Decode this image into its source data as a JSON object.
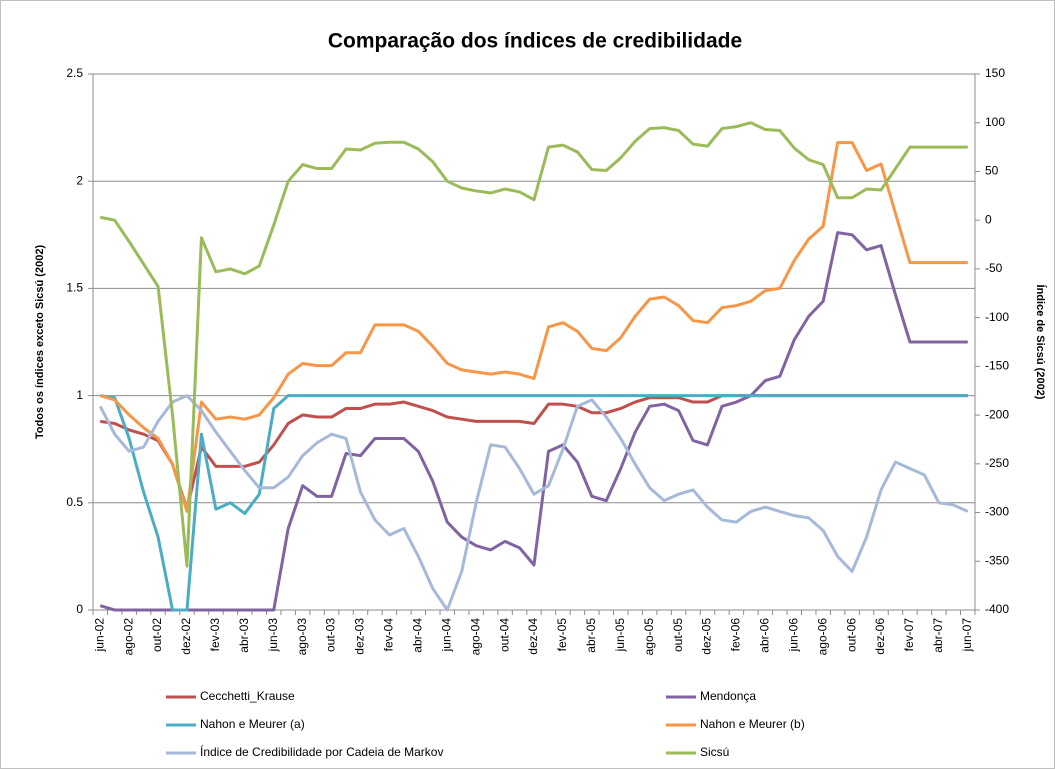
{
  "chart_data": {
    "type": "line",
    "title": "Comparação dos índices de credibilidade",
    "y_label": "Todos os índices exceto Sicsú (2002)",
    "y2_label": "Índice de Sicsú (2002)",
    "categories": [
      "jun-02",
      null,
      "ago-02",
      null,
      "out-02",
      null,
      "dez-02",
      null,
      "fev-03",
      null,
      "abr-03",
      null,
      "jun-03",
      null,
      "ago-03",
      null,
      "out-03",
      null,
      "dez-03",
      null,
      "fev-04",
      null,
      "abr-04",
      null,
      "jun-04",
      null,
      "ago-04",
      null,
      "out-04",
      null,
      "dez-04",
      null,
      "fev-05",
      null,
      "abr-05",
      null,
      "jun-05",
      null,
      "ago-05",
      null,
      "out-05",
      null,
      "dez-05",
      null,
      "fev-06",
      null,
      "abr-06",
      null,
      "jun-06",
      null,
      "ago-06",
      null,
      "out-06",
      null,
      "dez-06",
      null,
      "fev-07",
      null,
      "abr-07",
      null,
      "jun-07"
    ],
    "ylim": [
      0,
      2.5
    ],
    "yticks": [
      0,
      0.5,
      1,
      1.5,
      2,
      2.5
    ],
    "y2lim": [
      -400,
      150
    ],
    "y2ticks": [
      -400,
      -350,
      -300,
      -250,
      -200,
      -150,
      -100,
      -50,
      0,
      50,
      100,
      150
    ],
    "grid": true,
    "legend": "bottom",
    "series": [
      {
        "name": "Cecchetti_Krause",
        "color": "#c0504d",
        "values": [
          0.88,
          0.87,
          0.84,
          0.82,
          0.79,
          0.68,
          0.47,
          0.76,
          0.67,
          0.67,
          0.67,
          0.69,
          0.77,
          0.87,
          0.91,
          0.9,
          0.9,
          0.94,
          0.94,
          0.96,
          0.96,
          0.97,
          0.95,
          0.93,
          0.9,
          0.89,
          0.88,
          0.88,
          0.88,
          0.88,
          0.87,
          0.96,
          0.96,
          0.95,
          0.92,
          0.92,
          0.94,
          0.97,
          0.99,
          0.99,
          0.99,
          0.97,
          0.97,
          1,
          1,
          1,
          1,
          1,
          1,
          1,
          1,
          1,
          1,
          1,
          1,
          1,
          1,
          1,
          1,
          1,
          1
        ]
      },
      {
        "name": "Mendonça",
        "color": "#8064a2",
        "values": [
          0.02,
          0,
          0,
          0,
          0,
          0,
          0,
          0,
          0,
          0,
          0,
          0,
          0,
          0.38,
          0.58,
          0.53,
          0.53,
          0.73,
          0.72,
          0.8,
          0.8,
          0.8,
          0.74,
          0.6,
          0.41,
          0.34,
          0.3,
          0.28,
          0.32,
          0.29,
          0.21,
          0.74,
          0.77,
          0.69,
          0.53,
          0.51,
          0.66,
          0.83,
          0.95,
          0.96,
          0.93,
          0.79,
          0.77,
          0.95,
          0.97,
          1,
          1.07,
          1.09,
          1.26,
          1.37,
          1.44,
          1.76,
          1.75,
          1.68,
          1.7,
          1.47,
          1.25,
          1.25,
          1.25,
          1.25,
          1.25
        ]
      },
      {
        "name": "Nahon e Meurer (a)",
        "color": "#4bacc6",
        "values": [
          1,
          0.99,
          0.8,
          0.55,
          0.34,
          0,
          0,
          0.82,
          0.47,
          0.5,
          0.45,
          0.54,
          0.94,
          1,
          1,
          1,
          1,
          1,
          1,
          1,
          1,
          1,
          1,
          1,
          1,
          1,
          1,
          1,
          1,
          1,
          1,
          1,
          1,
          1,
          1,
          1,
          1,
          1,
          1,
          1,
          1,
          1,
          1,
          1,
          1,
          1,
          1,
          1,
          1,
          1,
          1,
          1,
          1,
          1,
          1,
          1,
          1,
          1,
          1,
          1,
          1
        ]
      },
      {
        "name": "Nahon e Meurer (b)",
        "color": "#f79646",
        "values": [
          1,
          0.98,
          0.91,
          0.85,
          0.8,
          0.68,
          0.46,
          0.97,
          0.89,
          0.9,
          0.89,
          0.91,
          0.99,
          1.1,
          1.15,
          1.14,
          1.14,
          1.2,
          1.2,
          1.33,
          1.33,
          1.33,
          1.3,
          1.23,
          1.15,
          1.12,
          1.11,
          1.1,
          1.11,
          1.1,
          1.08,
          1.32,
          1.34,
          1.3,
          1.22,
          1.21,
          1.27,
          1.37,
          1.45,
          1.46,
          1.42,
          1.35,
          1.34,
          1.41,
          1.42,
          1.44,
          1.49,
          1.5,
          1.63,
          1.73,
          1.79,
          2.18,
          2.18,
          2.05,
          2.08,
          1.85,
          1.62,
          1.62,
          1.62,
          1.62,
          1.62
        ]
      },
      {
        "name": "Índice de Credibilidade por Cadeia de Markov",
        "color": "#a6b9d9",
        "values": [
          0.95,
          0.82,
          0.74,
          0.76,
          0.88,
          0.97,
          1,
          0.93,
          0.83,
          0.74,
          0.65,
          0.57,
          0.57,
          0.62,
          0.72,
          0.78,
          0.82,
          0.8,
          0.55,
          0.42,
          0.35,
          0.38,
          0.25,
          0.1,
          0,
          0.18,
          0.5,
          0.77,
          0.76,
          0.66,
          0.54,
          0.58,
          0.75,
          0.95,
          0.98,
          0.9,
          0.8,
          0.68,
          0.57,
          0.51,
          0.54,
          0.56,
          0.48,
          0.42,
          0.41,
          0.46,
          0.48,
          0.46,
          0.44,
          0.43,
          0.37,
          0.25,
          0.18,
          0.34,
          0.56,
          0.69,
          0.66,
          0.63,
          0.5,
          0.49,
          0.46
        ]
      },
      {
        "name": "Sicsú",
        "color": "#9bbb59",
        "axis": "y2",
        "values": [
          3,
          0,
          -22,
          -45,
          -68,
          -200,
          -355,
          -18,
          -53,
          -50,
          -55,
          -47,
          -5,
          40,
          57,
          53,
          53,
          73,
          72,
          79,
          80,
          80,
          73,
          60,
          40,
          33,
          30,
          28,
          32,
          29,
          21,
          75,
          77,
          70,
          52,
          51,
          64,
          81,
          94,
          95,
          92,
          78,
          76,
          94,
          96,
          100,
          93,
          92,
          74,
          62,
          57,
          23,
          23,
          32,
          31,
          53,
          75,
          75,
          75,
          75,
          75
        ]
      }
    ]
  }
}
